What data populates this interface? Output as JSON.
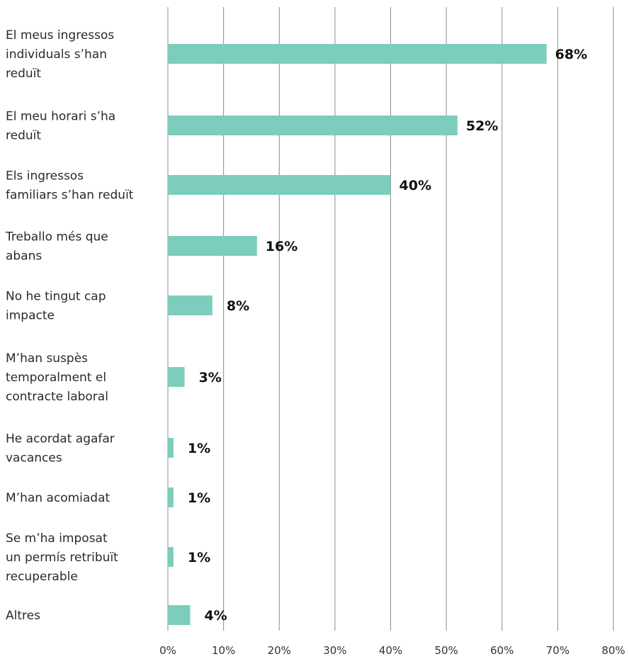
{
  "chart_data": {
    "type": "bar",
    "orientation": "horizontal",
    "title": "",
    "xlabel": "",
    "ylabel": "",
    "categories": [
      "El meus ingressos individuals s’han reduït",
      "El meu horari s’ha reduït",
      "Els ingressos familiars s’han reduït",
      "Treballo més que abans",
      "No he tingut cap impacte",
      "M’han suspès temporalment el contracte laboral",
      "He acordat agafar vacances",
      "M’han acomiadat",
      "Se m’ha imposat un permís retribuït recuperable",
      "Altres"
    ],
    "category_lines": [
      [
        "El meus ingressos",
        "individuals s’han",
        "reduït"
      ],
      [
        "El meu horari s’ha",
        "reduït"
      ],
      [
        "Els ingressos",
        "familiars s’han reduït"
      ],
      [
        "Treballo més que",
        "abans"
      ],
      [
        "No he tingut cap",
        "impacte"
      ],
      [
        "M’han suspès",
        "temporalment el",
        "contracte laboral"
      ],
      [
        "He acordat agafar",
        "vacances"
      ],
      [
        "M’han acomiadat"
      ],
      [
        "Se m’ha imposat",
        "un permís retribuït",
        "recuperable"
      ],
      [
        "Altres"
      ]
    ],
    "values": [
      68,
      52,
      40,
      16,
      8,
      3,
      1,
      1,
      1,
      4
    ],
    "value_labels": [
      "68%",
      "52%",
      "40%",
      "16%",
      "8%",
      "3%",
      "1%",
      "1%",
      "1%",
      "4%"
    ],
    "xlim": [
      0,
      80
    ],
    "x_ticks": [
      0,
      10,
      20,
      30,
      40,
      50,
      60,
      70,
      80
    ],
    "x_tick_labels": [
      "0%",
      "10%",
      "20%",
      "30%",
      "40%",
      "50%",
      "60%",
      "70%",
      "80%"
    ],
    "grid": true,
    "legend": "none",
    "colors": {
      "bar": "#7dcdbd",
      "grid": "#8a8a8a"
    }
  }
}
